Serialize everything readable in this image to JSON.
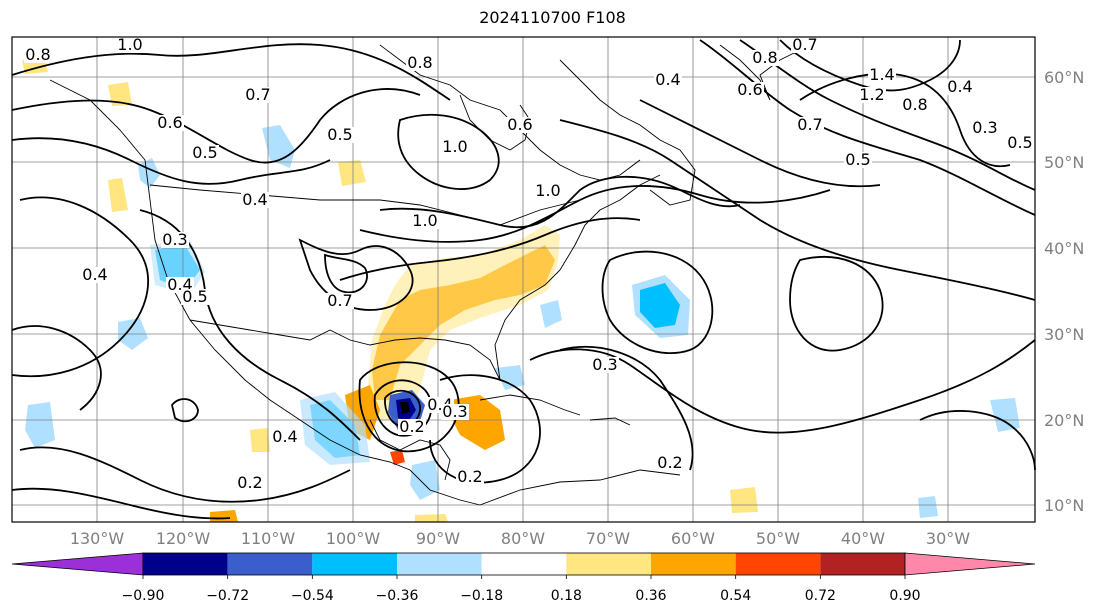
{
  "title": "2024110700 F108",
  "longitude_labels": [
    "130°W",
    "120°W",
    "110°W",
    "100°W",
    "90°W",
    "80°W",
    "70°W",
    "60°W",
    "50°W",
    "40°W",
    "30°W"
  ],
  "latitude_labels": [
    "10°N",
    "20°N",
    "30°N",
    "40°N",
    "50°N",
    "60°N"
  ],
  "colorbar": {
    "ticks": [
      "−0.90",
      "−0.72",
      "−0.54",
      "−0.36",
      "−0.18",
      "0.18",
      "0.36",
      "0.54",
      "0.72",
      "0.90"
    ],
    "colors": [
      "#9b30d9",
      "#00008b",
      "#3a5fcd",
      "#00bfff",
      "#b0e0ff",
      "#ffffff",
      "#ffe680",
      "#ffa500",
      "#ff4500",
      "#b22222",
      "#ff88aa"
    ]
  },
  "contour_labels": [
    "1.0",
    "0.8",
    "0.8",
    "0.8",
    "0.4",
    "0.7",
    "0.6",
    "0.5",
    "0.4",
    "0.3",
    "0.4",
    "0.5",
    "0.4",
    "1.0",
    "1.0",
    "1.0",
    "0.6",
    "0.7",
    "1.4",
    "1.2",
    "0.8",
    "0.4",
    "0.3",
    "0.5",
    "0.6",
    "0.7",
    "0.5",
    "0.3",
    "0.4",
    "0.7",
    "0.4",
    "0.2",
    "0.2",
    "0.2",
    "0.3",
    "0.2",
    "0.4",
    "0.5"
  ]
}
